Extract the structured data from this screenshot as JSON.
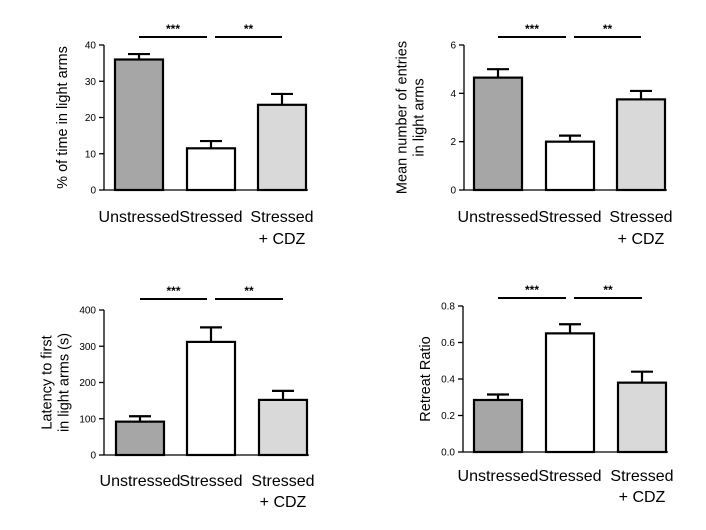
{
  "chart_data": [
    {
      "type": "bar",
      "ylabel": "% of time in light arms",
      "categories": [
        "Unstressed",
        "Stressed",
        "Stressed\n+ CDZ"
      ],
      "values": [
        36,
        11.5,
        23.5
      ],
      "errors": [
        1.5,
        2,
        3
      ],
      "ylim": [
        0,
        40
      ],
      "yticks": [
        0,
        10,
        20,
        30,
        40
      ],
      "bar_colors": [
        "#a6a6a6",
        "#ffffff",
        "#d9d9d9"
      ],
      "significance": [
        {
          "from": 0,
          "to": 1,
          "label": "***"
        },
        {
          "from": 1,
          "to": 2,
          "label": "**"
        }
      ]
    },
    {
      "type": "bar",
      "ylabel": "Mean number of entries\nin light arms",
      "categories": [
        "Unstressed",
        "Stressed",
        "Stressed\n+ CDZ"
      ],
      "values": [
        4.65,
        2.0,
        3.75
      ],
      "errors": [
        0.35,
        0.25,
        0.35
      ],
      "ylim": [
        0,
        6
      ],
      "yticks": [
        0,
        2,
        4,
        6
      ],
      "bar_colors": [
        "#a6a6a6",
        "#ffffff",
        "#d9d9d9"
      ],
      "significance": [
        {
          "from": 0,
          "to": 1,
          "label": "***"
        },
        {
          "from": 1,
          "to": 2,
          "label": "**"
        }
      ]
    },
    {
      "type": "bar",
      "ylabel": "Latency to first\nin light arms (s)",
      "categories": [
        "Unstressed",
        "Stressed",
        "Stressed\n+ CDZ"
      ],
      "values": [
        92,
        312,
        152
      ],
      "errors": [
        15,
        40,
        25
      ],
      "ylim": [
        0,
        400
      ],
      "yticks": [
        0,
        100,
        200,
        300,
        400
      ],
      "bar_colors": [
        "#a6a6a6",
        "#ffffff",
        "#d9d9d9"
      ],
      "significance": [
        {
          "from": 0,
          "to": 1,
          "label": "***"
        },
        {
          "from": 1,
          "to": 2,
          "label": "**"
        }
      ]
    },
    {
      "type": "bar",
      "ylabel": "Retreat Ratio",
      "categories": [
        "Unstressed",
        "Stressed",
        "Stressed\n+ CDZ"
      ],
      "values": [
        0.285,
        0.65,
        0.38
      ],
      "errors": [
        0.03,
        0.05,
        0.06
      ],
      "ylim": [
        0,
        0.8
      ],
      "yticks": [
        "0.0",
        "0.2",
        "0.4",
        "0.6",
        "0.8"
      ],
      "bar_colors": [
        "#a6a6a6",
        "#ffffff",
        "#d9d9d9"
      ],
      "significance": [
        {
          "from": 0,
          "to": 1,
          "label": "***"
        },
        {
          "from": 1,
          "to": 2,
          "label": "**"
        }
      ]
    }
  ]
}
